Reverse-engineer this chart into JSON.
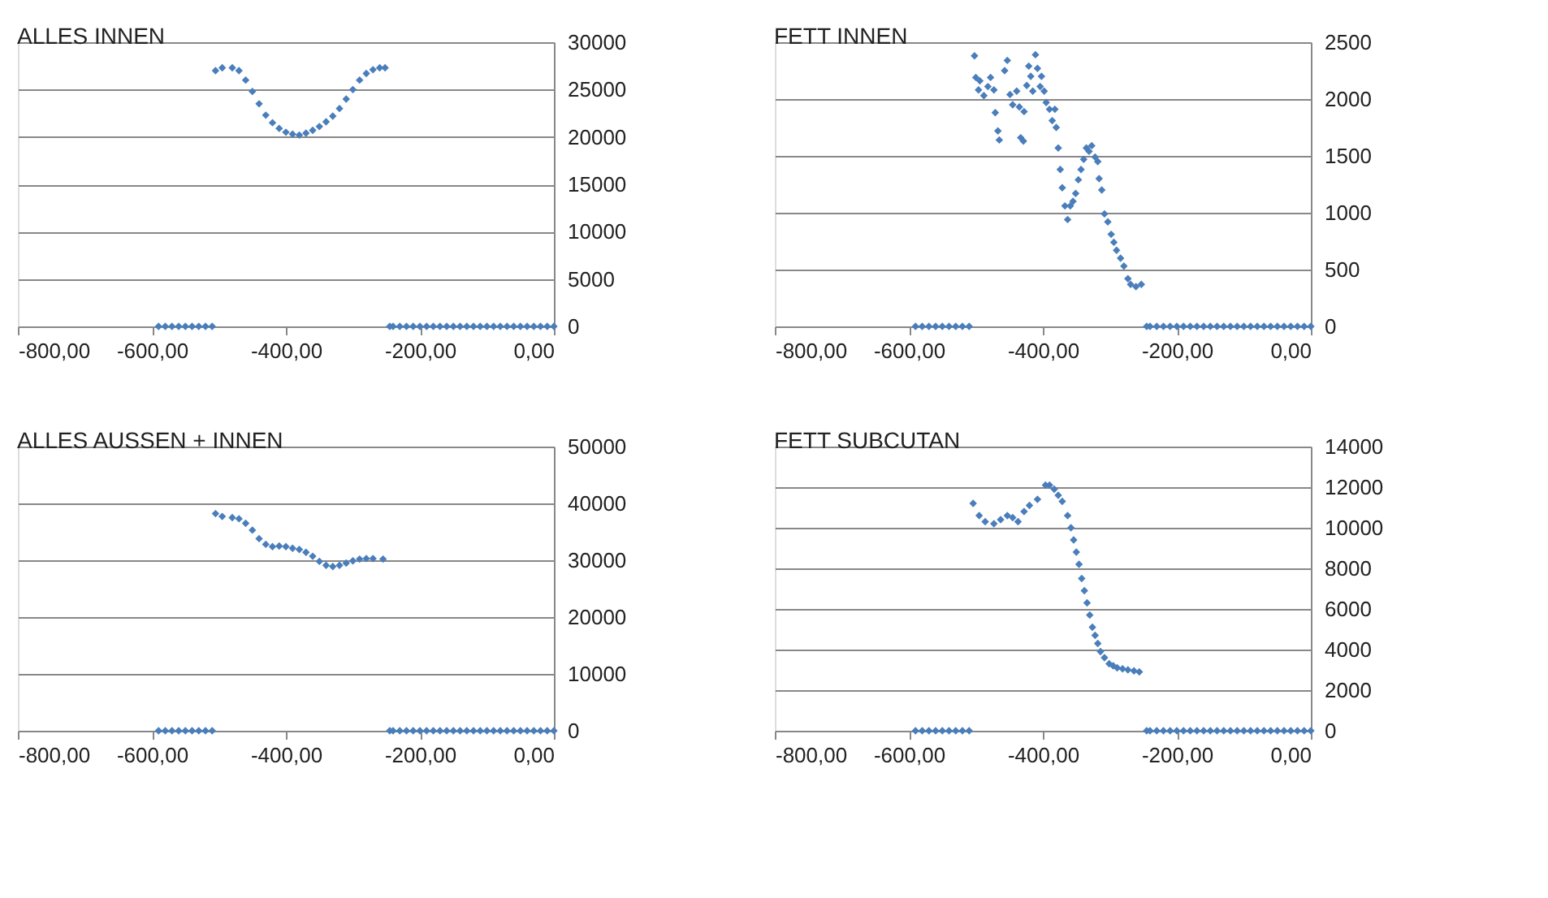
{
  "chart_data": [
    {
      "type": "scatter",
      "title": "ALLES INNEN",
      "marker": "diamond",
      "grid": "y",
      "xlim": [
        -800,
        0
      ],
      "xticks": [
        {
          "value": -800,
          "label": "-800,00"
        },
        {
          "value": -600,
          "label": "-600,00"
        },
        {
          "value": -400,
          "label": "-400,00"
        },
        {
          "value": -200,
          "label": "-200,00"
        },
        {
          "value": 0,
          "label": "0,00"
        }
      ],
      "ylim": [
        0,
        30000
      ],
      "yticks": [
        0,
        5000,
        10000,
        15000,
        20000,
        25000,
        30000
      ],
      "series": [
        {
          "color": "#4a7ebb",
          "x": [
            -590,
            -580,
            -570,
            -560,
            -550,
            -540,
            -530,
            -520,
            -510,
            -505,
            -495,
            -480,
            -470,
            -460,
            -450,
            -440,
            -430,
            -420,
            -410,
            -400,
            -390,
            -380,
            -370,
            -360,
            -350,
            -340,
            -330,
            -320,
            -310,
            -300,
            -290,
            -280,
            -270,
            -260,
            -252,
            -245,
            -240,
            -230,
            -220,
            -210,
            -200,
            -190,
            -180,
            -170,
            -160,
            -150,
            -140,
            -130,
            -120,
            -110,
            -100,
            -90,
            -80,
            -70,
            -60,
            -50,
            -40,
            -30,
            -20,
            -10,
            0
          ],
          "values": [
            0,
            0,
            0,
            0,
            0,
            0,
            0,
            0,
            0,
            27000,
            27300,
            27300,
            27000,
            26000,
            24800,
            23500,
            22300,
            21500,
            20900,
            20500,
            20300,
            20200,
            20400,
            20700,
            21100,
            21600,
            22200,
            23000,
            24000,
            25000,
            26000,
            26700,
            27100,
            27300,
            27300,
            0,
            0,
            0,
            0,
            0,
            0,
            0,
            0,
            0,
            0,
            0,
            0,
            0,
            0,
            0,
            0,
            0,
            0,
            0,
            0,
            0,
            0,
            0,
            0,
            0,
            0
          ]
        }
      ]
    },
    {
      "type": "scatter",
      "title": "FETT INNEN",
      "marker": "diamond",
      "grid": "y",
      "xlim": [
        -800,
        0
      ],
      "xticks": [
        {
          "value": -800,
          "label": "-800,00"
        },
        {
          "value": -600,
          "label": "-600,00"
        },
        {
          "value": -400,
          "label": "-400,00"
        },
        {
          "value": -200,
          "label": "-200,00"
        },
        {
          "value": 0,
          "label": "0,00"
        }
      ],
      "ylim": [
        0,
        2500
      ],
      "yticks": [
        0,
        500,
        1000,
        1500,
        2000,
        2500
      ],
      "series": [
        {
          "color": "#4a7ebb",
          "x": [
            -590,
            -580,
            -570,
            -560,
            -550,
            -540,
            -530,
            -520,
            -510,
            -502,
            -500,
            -494,
            -496,
            -488,
            -482,
            -478,
            -473,
            -471,
            -467,
            -465,
            -457,
            -453,
            -449,
            -445,
            -439,
            -435,
            -433,
            -429,
            -428,
            -424,
            -421,
            -418,
            -415,
            -411,
            -408,
            -404,
            -402,
            -398,
            -395,
            -390,
            -386,
            -382,
            -380,
            -377,
            -374,
            -371,
            -367,
            -363,
            -359,
            -355,
            -351,
            -347,
            -343,
            -339,
            -335,
            -331,
            -327,
            -322,
            -318,
            -316,
            -312,
            -308,
            -303,
            -298,
            -294,
            -290,
            -284,
            -279,
            -273,
            -269,
            -261,
            -253,
            -245,
            -240,
            -230,
            -220,
            -210,
            -200,
            -190,
            -180,
            -170,
            -160,
            -150,
            -140,
            -130,
            -120,
            -110,
            -100,
            -90,
            -80,
            -70,
            -60,
            -50,
            -40,
            -30,
            -20,
            -10,
            0
          ],
          "values": [
            0,
            0,
            0,
            0,
            0,
            0,
            0,
            0,
            0,
            2380,
            2190,
            2160,
            2080,
            2030,
            2110,
            2190,
            2080,
            1880,
            1720,
            1640,
            2250,
            2340,
            2040,
            1950,
            2070,
            1930,
            1660,
            1630,
            1890,
            2120,
            2290,
            2200,
            2070,
            2390,
            2270,
            2110,
            2200,
            2070,
            1970,
            1910,
            1810,
            1910,
            1750,
            1570,
            1380,
            1220,
            1060,
            940,
            1060,
            1100,
            1170,
            1290,
            1380,
            1470,
            1570,
            1540,
            1590,
            1490,
            1450,
            1300,
            1200,
            990,
            920,
            810,
            740,
            670,
            600,
            530,
            420,
            370,
            350,
            370,
            0,
            0,
            0,
            0,
            0,
            0,
            0,
            0,
            0,
            0,
            0,
            0,
            0,
            0,
            0,
            0,
            0,
            0,
            0,
            0,
            0,
            0,
            0,
            0,
            0,
            0
          ]
        }
      ]
    },
    {
      "type": "scatter",
      "title": "ALLES AUSSEN + INNEN",
      "marker": "diamond",
      "grid": "y",
      "xlim": [
        -800,
        0
      ],
      "xticks": [
        {
          "value": -800,
          "label": "-800,00"
        },
        {
          "value": -600,
          "label": "-600,00"
        },
        {
          "value": -400,
          "label": "-400,00"
        },
        {
          "value": -200,
          "label": "-200,00"
        },
        {
          "value": 0,
          "label": "0,00"
        }
      ],
      "ylim": [
        0,
        50000
      ],
      "yticks": [
        0,
        10000,
        20000,
        30000,
        40000,
        50000
      ],
      "series": [
        {
          "color": "#4a7ebb",
          "x": [
            -590,
            -580,
            -570,
            -560,
            -550,
            -540,
            -530,
            -520,
            -510,
            -505,
            -495,
            -480,
            -470,
            -460,
            -450,
            -440,
            -430,
            -420,
            -410,
            -400,
            -390,
            -380,
            -370,
            -360,
            -350,
            -340,
            -330,
            -320,
            -310,
            -300,
            -290,
            -280,
            -270,
            -255,
            -245,
            -240,
            -230,
            -220,
            -210,
            -200,
            -190,
            -180,
            -170,
            -160,
            -150,
            -140,
            -130,
            -120,
            -110,
            -100,
            -90,
            -80,
            -70,
            -60,
            -50,
            -40,
            -30,
            -20,
            -10,
            0
          ],
          "values": [
            0,
            0,
            0,
            0,
            0,
            0,
            0,
            0,
            0,
            38200,
            37700,
            37500,
            37300,
            36500,
            35300,
            33800,
            32800,
            32400,
            32500,
            32400,
            32100,
            31900,
            31400,
            30700,
            29800,
            29100,
            28900,
            29100,
            29500,
            29900,
            30200,
            30300,
            30300,
            30200,
            0,
            0,
            0,
            0,
            0,
            0,
            0,
            0,
            0,
            0,
            0,
            0,
            0,
            0,
            0,
            0,
            0,
            0,
            0,
            0,
            0,
            0,
            0,
            0,
            0,
            0
          ]
        }
      ]
    },
    {
      "type": "scatter",
      "title": "FETT SUBCUTAN",
      "marker": "diamond",
      "grid": "y",
      "xlim": [
        -800,
        0
      ],
      "xticks": [
        {
          "value": -800,
          "label": "-800,00"
        },
        {
          "value": -600,
          "label": "-600,00"
        },
        {
          "value": -400,
          "label": "-400,00"
        },
        {
          "value": -200,
          "label": "-200,00"
        },
        {
          "value": 0,
          "label": "0,00"
        }
      ],
      "ylim": [
        0,
        14000
      ],
      "yticks": [
        0,
        2000,
        4000,
        6000,
        8000,
        10000,
        12000,
        14000
      ],
      "series": [
        {
          "color": "#4a7ebb",
          "x": [
            -590,
            -580,
            -570,
            -560,
            -550,
            -540,
            -530,
            -520,
            -510,
            -504,
            -495,
            -486,
            -473,
            -463,
            -453,
            -445,
            -437,
            -428,
            -420,
            -408,
            -396,
            -390,
            -383,
            -377,
            -371,
            -363,
            -358,
            -354,
            -350,
            -346,
            -342,
            -338,
            -334,
            -330,
            -326,
            -322,
            -318,
            -314,
            -308,
            -301,
            -295,
            -289,
            -281,
            -273,
            -264,
            -256,
            -245,
            -240,
            -230,
            -220,
            -210,
            -200,
            -190,
            -180,
            -170,
            -160,
            -150,
            -140,
            -130,
            -120,
            -110,
            -100,
            -90,
            -80,
            -70,
            -60,
            -50,
            -40,
            -30,
            -20,
            -10,
            0
          ],
          "values": [
            0,
            0,
            0,
            0,
            0,
            0,
            0,
            0,
            0,
            11200,
            10600,
            10300,
            10200,
            10400,
            10600,
            10500,
            10300,
            10800,
            11100,
            11400,
            12100,
            12100,
            11900,
            11600,
            11300,
            10600,
            10000,
            9400,
            8800,
            8200,
            7500,
            6900,
            6300,
            5700,
            5100,
            4700,
            4300,
            3900,
            3600,
            3300,
            3200,
            3100,
            3050,
            3000,
            2950,
            2900,
            0,
            0,
            0,
            0,
            0,
            0,
            0,
            0,
            0,
            0,
            0,
            0,
            0,
            0,
            0,
            0,
            0,
            0,
            0,
            0,
            0,
            0,
            0,
            0,
            0,
            0
          ]
        }
      ]
    }
  ]
}
